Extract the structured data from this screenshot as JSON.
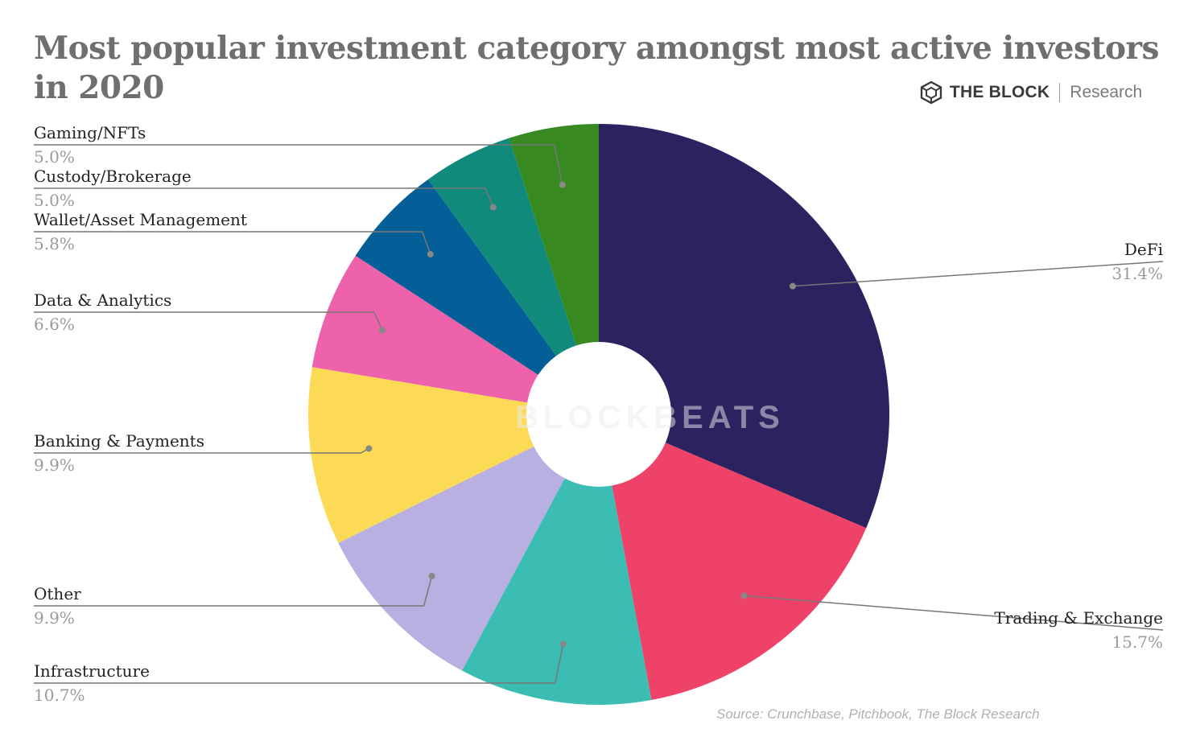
{
  "title": "Most popular investment category amongst most active investors in 2020",
  "brand": {
    "name": "THE BLOCK",
    "sub": "Research",
    "logo_icon": "cube-icon"
  },
  "watermark": "BLOCKBEATS",
  "source": "Source: Crunchbase, Pitchbook, The Block Research",
  "chart_data": {
    "type": "pie",
    "variant": "donut",
    "title": "Most popular investment category amongst most active investors in 2020",
    "unit": "%",
    "start_angle_deg": 0,
    "direction": "clockwise",
    "slices": [
      {
        "label": "DeFi",
        "value": 31.4,
        "display": "31.4%",
        "color": "#2b2260",
        "side": "right"
      },
      {
        "label": "Trading & Exchange",
        "value": 15.7,
        "display": "15.7%",
        "color": "#ef4269",
        "side": "right"
      },
      {
        "label": "Infrastructure",
        "value": 10.7,
        "display": "10.7%",
        "color": "#3bbdb3",
        "side": "left"
      },
      {
        "label": "Other",
        "value": 9.9,
        "display": "9.9%",
        "color": "#b8b0e0",
        "side": "left"
      },
      {
        "label": "Banking & Payments",
        "value": 9.9,
        "display": "9.9%",
        "color": "#fcda55",
        "side": "left"
      },
      {
        "label": "Data & Analytics",
        "value": 6.6,
        "display": "6.6%",
        "color": "#ed62ab",
        "side": "left"
      },
      {
        "label": "Wallet/Asset Management",
        "value": 5.8,
        "display": "5.8%",
        "color": "#045f98",
        "side": "left"
      },
      {
        "label": "Custody/Brokerage",
        "value": 5.0,
        "display": "5.0%",
        "color": "#0f8a7b",
        "side": "left"
      },
      {
        "label": "Gaming/NFTs",
        "value": 5.0,
        "display": "5.0%",
        "color": "#388a20",
        "side": "left"
      }
    ]
  }
}
